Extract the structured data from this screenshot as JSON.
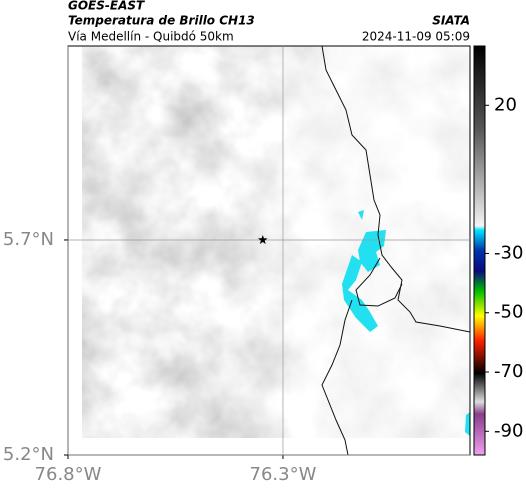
{
  "chart_data": {
    "type": "map",
    "title": "GOES-EAST",
    "subtitle": "Temperatura de Brillo CH13",
    "source": "SIATA",
    "region": "Vía Medellín - Quibdó 50km",
    "timestamp": "2024-11-09 05:09",
    "xlim": [
      -76.8,
      -75.865
    ],
    "ylim": [
      5.2,
      6.151
    ],
    "xticks": [
      {
        "value": -76.8,
        "label": "76.8°W"
      },
      {
        "value": -76.3,
        "label": "76.3°W"
      }
    ],
    "yticks": [
      {
        "value": 5.7,
        "label": "5.7°N"
      },
      {
        "value": 5.2,
        "label": "5.2°N"
      }
    ],
    "grid": true,
    "marker": {
      "x": -76.347,
      "y": 5.7
    },
    "colorbar": {
      "lim": [
        -98,
        40
      ],
      "ticks": [
        20,
        -30,
        -50,
        -70,
        -90
      ]
    }
  }
}
